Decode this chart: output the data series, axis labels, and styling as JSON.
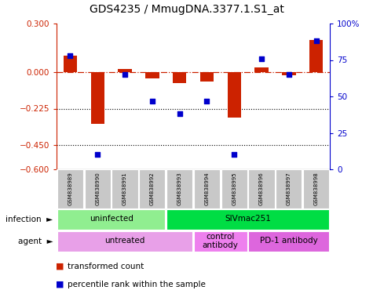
{
  "title": "GDS4235 / MmugDNA.3377.1.S1_at",
  "samples": [
    "GSM838989",
    "GSM838990",
    "GSM838991",
    "GSM838992",
    "GSM838993",
    "GSM838994",
    "GSM838995",
    "GSM838996",
    "GSM838997",
    "GSM838998"
  ],
  "red_values": [
    0.1,
    -0.32,
    0.02,
    -0.04,
    -0.07,
    -0.06,
    -0.28,
    0.03,
    -0.02,
    0.2
  ],
  "blue_values": [
    78,
    10,
    65,
    47,
    38,
    47,
    10,
    76,
    65,
    88
  ],
  "ylim_left": [
    -0.6,
    0.3
  ],
  "ylim_right": [
    0,
    100
  ],
  "left_yticks": [
    0.3,
    0,
    -0.225,
    -0.45,
    -0.6
  ],
  "right_yticks": [
    100,
    75,
    50,
    25,
    0
  ],
  "hlines": [
    -0.225,
    -0.45
  ],
  "infection_groups": [
    {
      "label": "uninfected",
      "start": 0,
      "end": 4,
      "color": "#90EE90"
    },
    {
      "label": "SIVmac251",
      "start": 4,
      "end": 10,
      "color": "#00DD44"
    }
  ],
  "agent_groups": [
    {
      "label": "untreated",
      "start": 0,
      "end": 5,
      "color": "#E8A0E8"
    },
    {
      "label": "control\nantibody",
      "start": 5,
      "end": 7,
      "color": "#EE80EE"
    },
    {
      "label": "PD-1 antibody",
      "start": 7,
      "end": 10,
      "color": "#DD66DD"
    }
  ],
  "legend_red": "transformed count",
  "legend_blue": "percentile rank within the sample",
  "red_color": "#CC2200",
  "blue_color": "#0000CC",
  "bar_width": 0.5,
  "sample_box_color": "#C8C8C8",
  "title_fontsize": 10
}
